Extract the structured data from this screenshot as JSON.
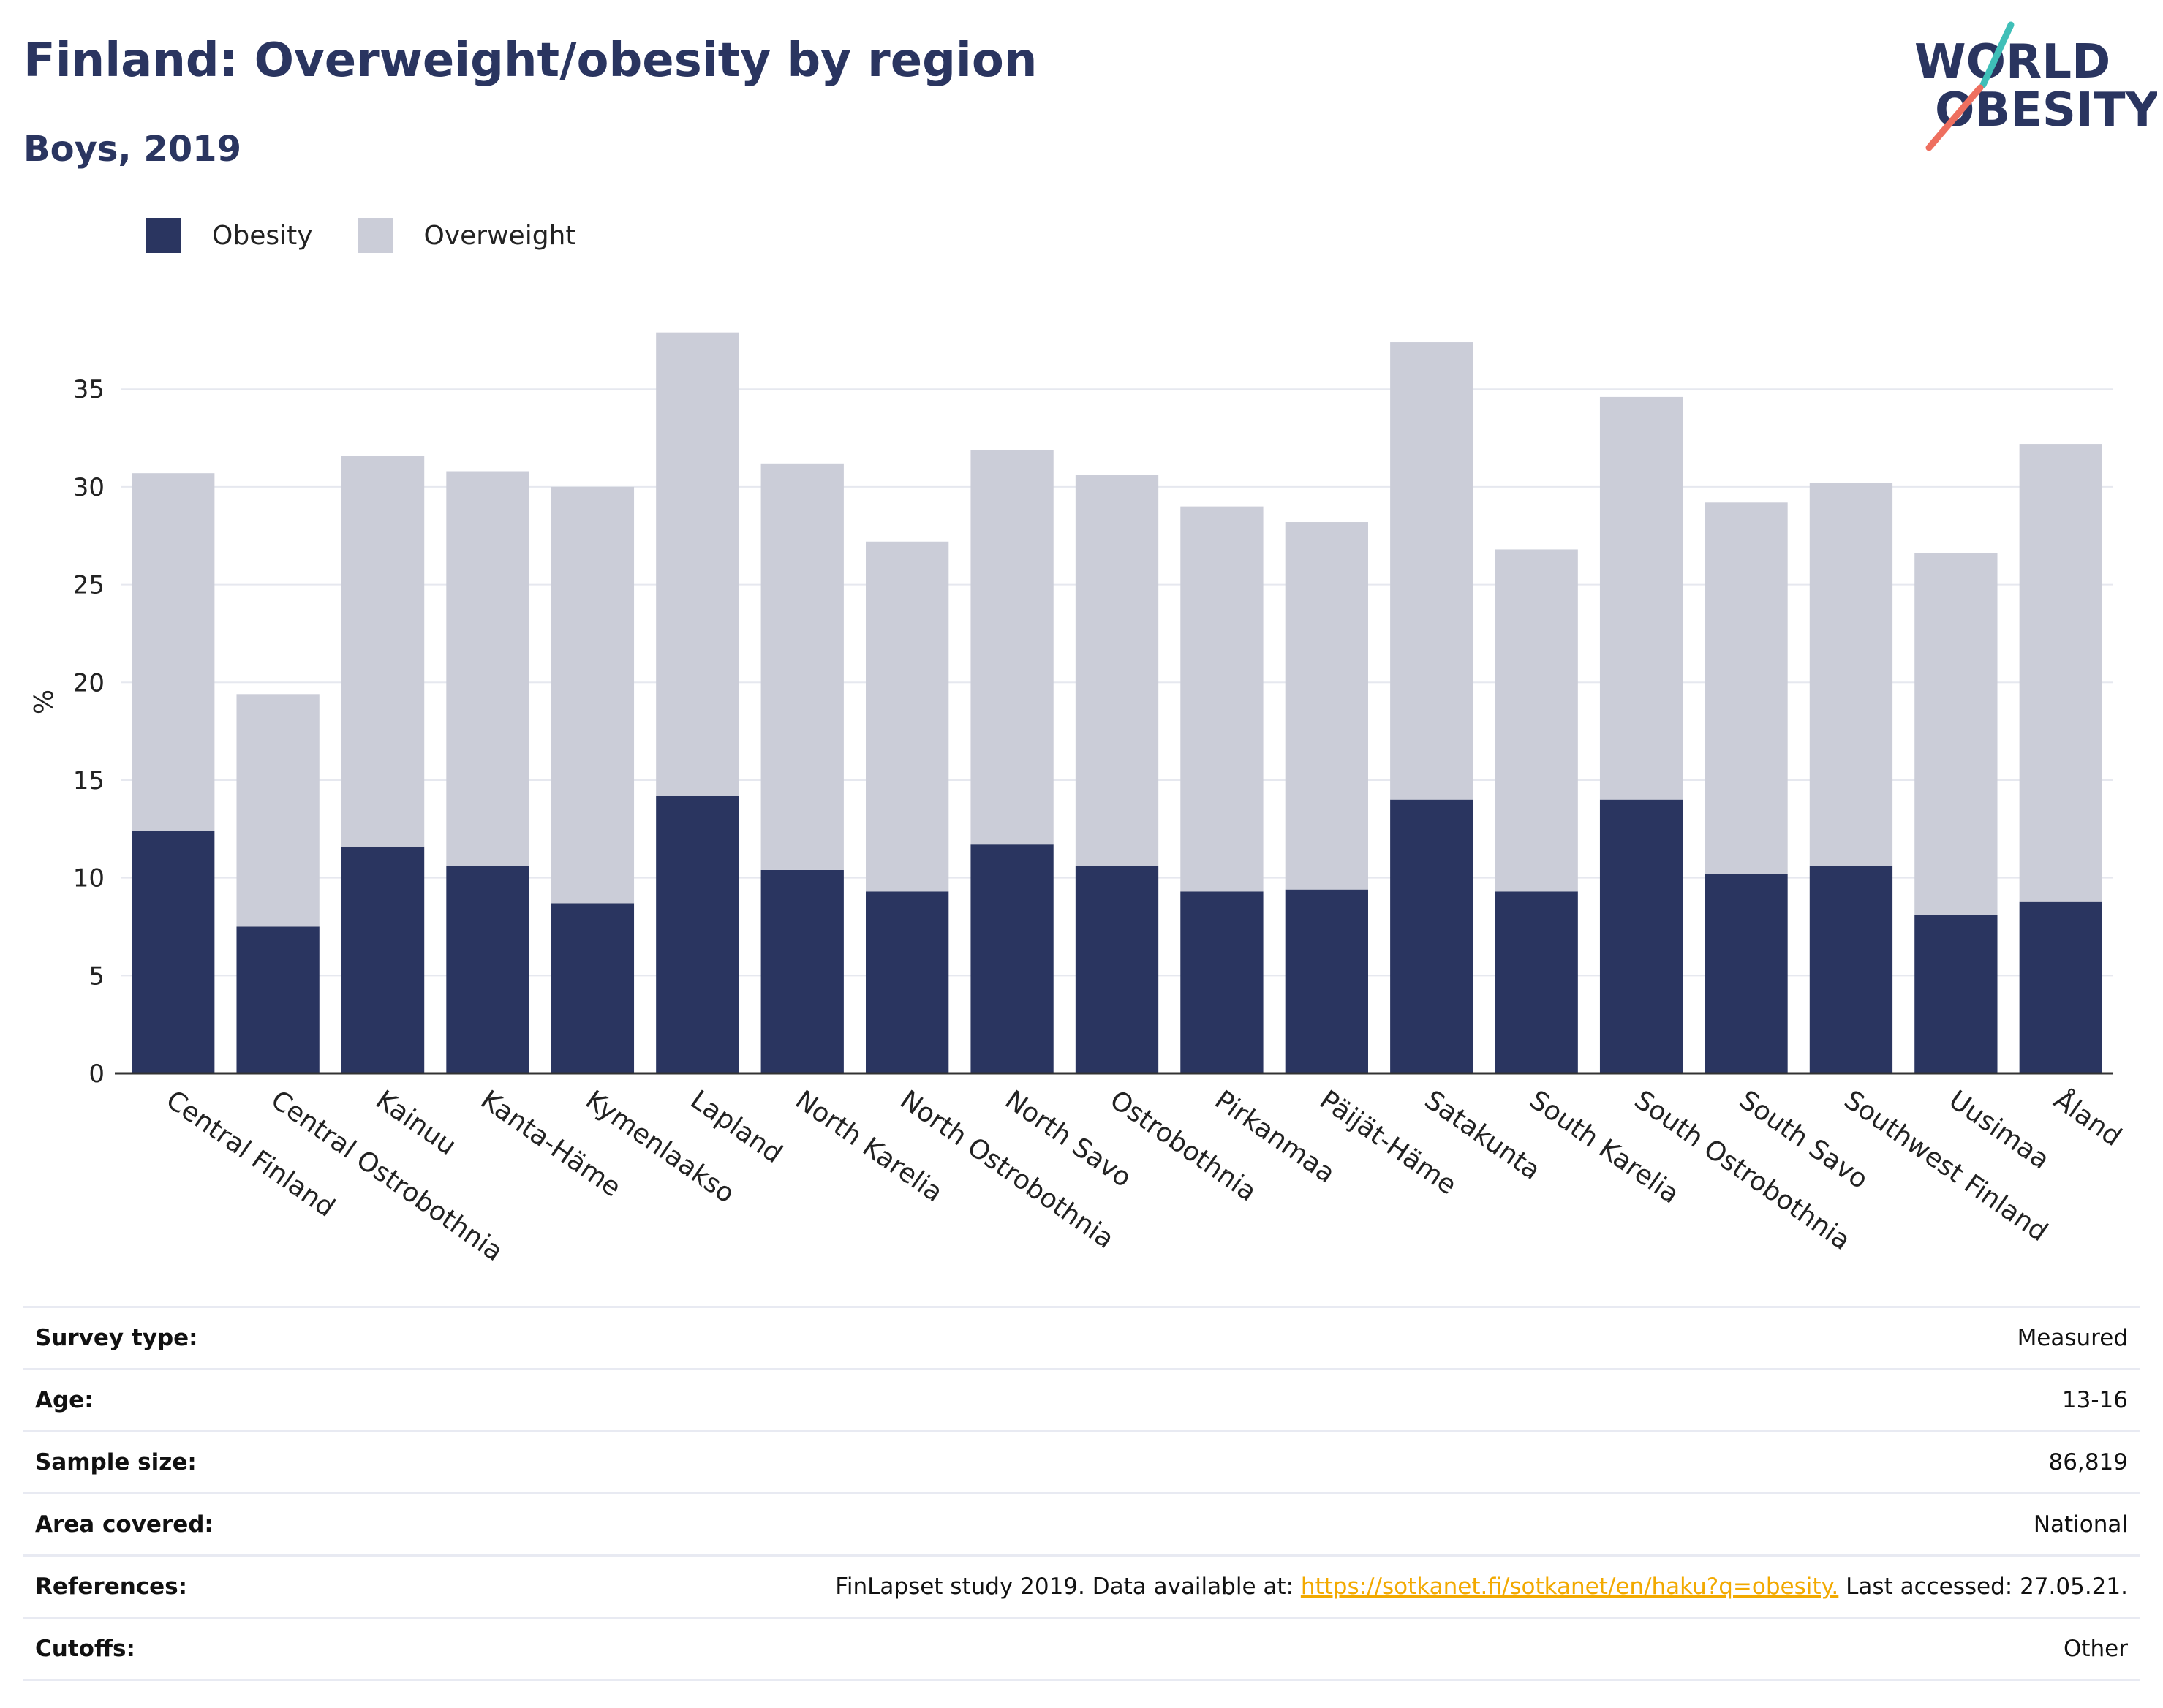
{
  "header": {
    "title": "Finland: Overweight/obesity by region",
    "subtitle": "Boys, 2019"
  },
  "logo": {
    "line1": "WORLD",
    "line2": "OBESITY"
  },
  "legend": [
    {
      "label": "Obesity",
      "color": "#2a3560"
    },
    {
      "label": "Overweight",
      "color": "#cbcdd8"
    }
  ],
  "chart_data": {
    "type": "bar",
    "stacked": true,
    "title": "Finland: Overweight/obesity by region",
    "subtitle": "Boys, 2019",
    "xlabel": "",
    "ylabel": "%",
    "ylim": [
      0,
      38
    ],
    "yticks": [
      0,
      5,
      10,
      15,
      20,
      25,
      30,
      35
    ],
    "grid": true,
    "legend_position": "top-left",
    "categories": [
      "Central Finland",
      "Central Ostrobothnia",
      "Kainuu",
      "Kanta-Häme",
      "Kymenlaakso",
      "Lapland",
      "North Karelia",
      "North Ostrobothnia",
      "North Savo",
      "Ostrobothnia",
      "Pirkanmaa",
      "Päijät-Häme",
      "Satakunta",
      "South Karelia",
      "South Ostrobothnia",
      "South Savo",
      "Southwest Finland",
      "Uusimaa",
      "Åland"
    ],
    "series": [
      {
        "name": "Obesity",
        "color": "#2a3560",
        "values": [
          12.4,
          7.5,
          11.6,
          10.6,
          8.7,
          14.2,
          10.4,
          9.3,
          11.7,
          10.6,
          9.3,
          9.4,
          14.0,
          9.3,
          14.0,
          10.2,
          10.6,
          8.1,
          8.8
        ]
      },
      {
        "name": "Overweight",
        "color": "#cbcdd8",
        "values": [
          18.3,
          11.9,
          20.0,
          20.2,
          21.3,
          23.7,
          20.8,
          17.9,
          20.2,
          20.0,
          19.7,
          18.8,
          23.4,
          17.5,
          20.6,
          19.0,
          19.6,
          18.5,
          23.4
        ]
      }
    ]
  },
  "info": [
    {
      "label": "Survey type:",
      "value": "Measured"
    },
    {
      "label": "Age:",
      "value": "13-16"
    },
    {
      "label": "Sample size:",
      "value": "86,819"
    },
    {
      "label": "Area covered:",
      "value": "National"
    },
    {
      "label": "References:",
      "value_prefix": "FinLapset study 2019. Data available at: ",
      "link": "https://sotkanet.fi/sotkanet/en/haku?q=obesity.",
      "value_suffix": " Last accessed: 27.05.21."
    },
    {
      "label": "Cutoffs:",
      "value": "Other"
    }
  ]
}
